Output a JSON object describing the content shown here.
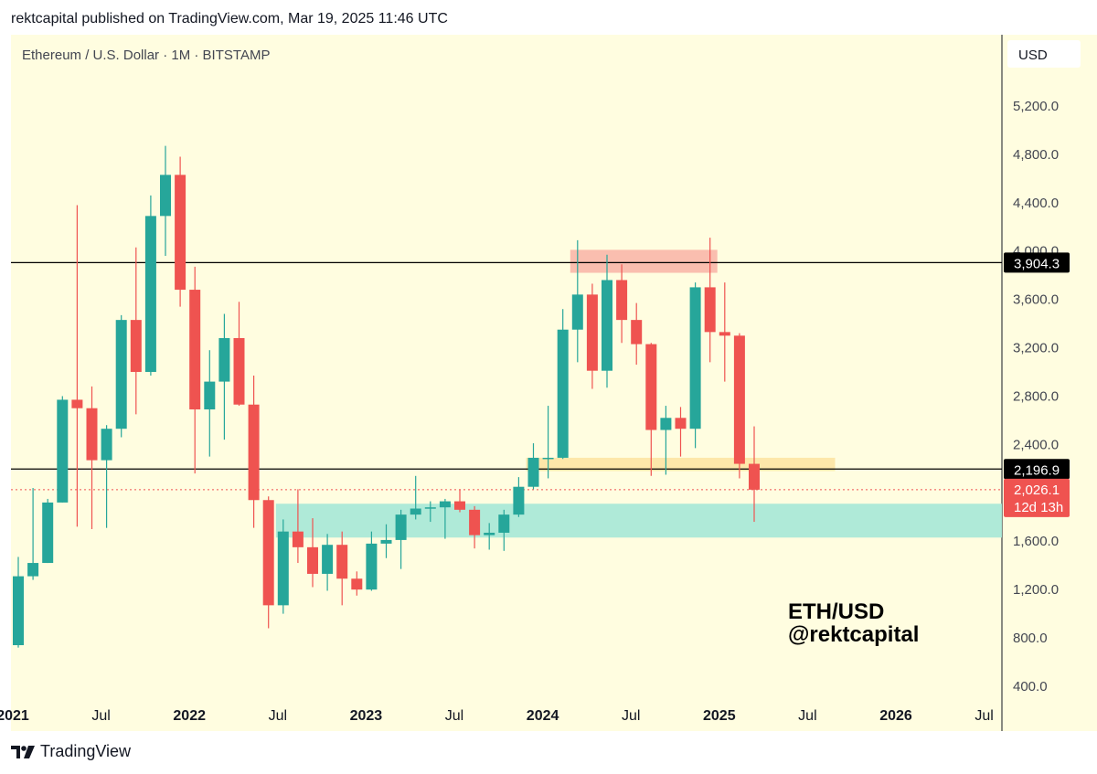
{
  "publisher": "rektcapital published on TradingView.com, Mar 19, 2025 11:46 UTC",
  "brand": "TradingView",
  "watermark": {
    "line1": "ETH/USD",
    "line2": "@rektcapital"
  },
  "colors": {
    "background": "#fffde0",
    "up": "#26a69a",
    "down": "#ef5350",
    "resistance_zone": "#f9b7aa",
    "support_zone_orange": "#fde3a0",
    "support_zone_teal": "#a6e8d7"
  },
  "chart_data": {
    "type": "candlestick",
    "title": "Ethereum / U.S. Dollar · 1M · BITSTAMP",
    "currency": "USD",
    "ylim": [
      300,
      5600
    ],
    "y_ticks": [
      400,
      800,
      1200,
      1600,
      2000,
      2400,
      2800,
      3200,
      3600,
      4000,
      4400,
      4800,
      5200
    ],
    "y_tick_labels": [
      "400.0",
      "800.0",
      "1,200.0",
      "1,600.0",
      "2,000.0",
      "2,400.0",
      "2,800.0",
      "3,200.0",
      "3,600.0",
      "4,000.0",
      "4,400.0",
      "4,800.0",
      "5,200.0"
    ],
    "x_labels": [
      {
        "date": "2021-01",
        "label": "2021",
        "bold": true
      },
      {
        "date": "2021-07",
        "label": "Jul",
        "bold": false
      },
      {
        "date": "2022-01",
        "label": "2022",
        "bold": true
      },
      {
        "date": "2022-07",
        "label": "Jul",
        "bold": false
      },
      {
        "date": "2023-01",
        "label": "2023",
        "bold": true
      },
      {
        "date": "2023-07",
        "label": "Jul",
        "bold": false
      },
      {
        "date": "2024-01",
        "label": "2024",
        "bold": true
      },
      {
        "date": "2024-07",
        "label": "Jul",
        "bold": false
      },
      {
        "date": "2025-01",
        "label": "2025",
        "bold": true
      },
      {
        "date": "2025-07",
        "label": "Jul",
        "bold": false
      },
      {
        "date": "2026-01",
        "label": "2026",
        "bold": true
      },
      {
        "date": "2026-07",
        "label": "Jul",
        "bold": false
      }
    ],
    "candles": [
      {
        "date": "2021-01",
        "o": 740,
        "h": 1470,
        "l": 720,
        "c": 1310
      },
      {
        "date": "2021-02",
        "o": 1310,
        "h": 2040,
        "l": 1280,
        "c": 1420
      },
      {
        "date": "2021-03",
        "o": 1420,
        "h": 1950,
        "l": 1420,
        "c": 1920
      },
      {
        "date": "2021-04",
        "o": 1920,
        "h": 2800,
        "l": 1920,
        "c": 2770
      },
      {
        "date": "2021-05",
        "o": 2770,
        "h": 4380,
        "l": 1720,
        "c": 2700
      },
      {
        "date": "2021-06",
        "o": 2700,
        "h": 2880,
        "l": 1700,
        "c": 2270
      },
      {
        "date": "2021-07",
        "o": 2270,
        "h": 2560,
        "l": 1710,
        "c": 2530
      },
      {
        "date": "2021-08",
        "o": 2530,
        "h": 3470,
        "l": 2460,
        "c": 3430
      },
      {
        "date": "2021-09",
        "o": 3430,
        "h": 4030,
        "l": 2650,
        "c": 3000
      },
      {
        "date": "2021-10",
        "o": 3000,
        "h": 4460,
        "l": 2970,
        "c": 4290
      },
      {
        "date": "2021-11",
        "o": 4290,
        "h": 4870,
        "l": 3960,
        "c": 4630
      },
      {
        "date": "2021-12",
        "o": 4630,
        "h": 4780,
        "l": 3540,
        "c": 3680
      },
      {
        "date": "2022-01",
        "o": 3680,
        "h": 3870,
        "l": 2160,
        "c": 2690
      },
      {
        "date": "2022-02",
        "o": 2690,
        "h": 3180,
        "l": 2300,
        "c": 2920
      },
      {
        "date": "2022-03",
        "o": 2920,
        "h": 3480,
        "l": 2440,
        "c": 3280
      },
      {
        "date": "2022-04",
        "o": 3280,
        "h": 3580,
        "l": 2720,
        "c": 2730
      },
      {
        "date": "2022-05",
        "o": 2730,
        "h": 2970,
        "l": 1710,
        "c": 1940
      },
      {
        "date": "2022-06",
        "o": 1940,
        "h": 1970,
        "l": 880,
        "c": 1070
      },
      {
        "date": "2022-07",
        "o": 1070,
        "h": 1780,
        "l": 1000,
        "c": 1680
      },
      {
        "date": "2022-08",
        "o": 1680,
        "h": 2030,
        "l": 1420,
        "c": 1550
      },
      {
        "date": "2022-09",
        "o": 1550,
        "h": 1790,
        "l": 1220,
        "c": 1330
      },
      {
        "date": "2022-10",
        "o": 1330,
        "h": 1660,
        "l": 1190,
        "c": 1570
      },
      {
        "date": "2022-11",
        "o": 1570,
        "h": 1680,
        "l": 1070,
        "c": 1290
      },
      {
        "date": "2022-12",
        "o": 1290,
        "h": 1350,
        "l": 1150,
        "c": 1200
      },
      {
        "date": "2023-01",
        "o": 1200,
        "h": 1680,
        "l": 1190,
        "c": 1580
      },
      {
        "date": "2023-02",
        "o": 1580,
        "h": 1740,
        "l": 1460,
        "c": 1610
      },
      {
        "date": "2023-03",
        "o": 1610,
        "h": 1860,
        "l": 1370,
        "c": 1820
      },
      {
        "date": "2023-04",
        "o": 1820,
        "h": 2140,
        "l": 1780,
        "c": 1870
      },
      {
        "date": "2023-05",
        "o": 1870,
        "h": 1930,
        "l": 1760,
        "c": 1880
      },
      {
        "date": "2023-06",
        "o": 1880,
        "h": 1950,
        "l": 1620,
        "c": 1930
      },
      {
        "date": "2023-07",
        "o": 1930,
        "h": 2030,
        "l": 1840,
        "c": 1860
      },
      {
        "date": "2023-08",
        "o": 1860,
        "h": 1890,
        "l": 1540,
        "c": 1650
      },
      {
        "date": "2023-09",
        "o": 1650,
        "h": 1750,
        "l": 1530,
        "c": 1670
      },
      {
        "date": "2023-10",
        "o": 1670,
        "h": 1860,
        "l": 1520,
        "c": 1820
      },
      {
        "date": "2023-11",
        "o": 1820,
        "h": 2130,
        "l": 1800,
        "c": 2050
      },
      {
        "date": "2023-12",
        "o": 2050,
        "h": 2410,
        "l": 2030,
        "c": 2290
      },
      {
        "date": "2024-01",
        "o": 2290,
        "h": 2720,
        "l": 2120,
        "c": 2290
      },
      {
        "date": "2024-02",
        "o": 2290,
        "h": 3520,
        "l": 2280,
        "c": 3350
      },
      {
        "date": "2024-03",
        "o": 3350,
        "h": 4090,
        "l": 3080,
        "c": 3640
      },
      {
        "date": "2024-04",
        "o": 3640,
        "h": 3730,
        "l": 2860,
        "c": 3010
      },
      {
        "date": "2024-05",
        "o": 3010,
        "h": 3970,
        "l": 2870,
        "c": 3760
      },
      {
        "date": "2024-06",
        "o": 3760,
        "h": 3890,
        "l": 3240,
        "c": 3430
      },
      {
        "date": "2024-07",
        "o": 3430,
        "h": 3570,
        "l": 3060,
        "c": 3230
      },
      {
        "date": "2024-08",
        "o": 3230,
        "h": 3240,
        "l": 2140,
        "c": 2520
      },
      {
        "date": "2024-09",
        "o": 2520,
        "h": 2720,
        "l": 2150,
        "c": 2620
      },
      {
        "date": "2024-10",
        "o": 2620,
        "h": 2710,
        "l": 2300,
        "c": 2530
      },
      {
        "date": "2024-11",
        "o": 2530,
        "h": 3740,
        "l": 2370,
        "c": 3700
      },
      {
        "date": "2024-12",
        "o": 3700,
        "h": 4110,
        "l": 3080,
        "c": 3330
      },
      {
        "date": "2025-01",
        "o": 3330,
        "h": 3740,
        "l": 2920,
        "c": 3300
      },
      {
        "date": "2025-02",
        "o": 3300,
        "h": 3320,
        "l": 2120,
        "c": 2240
      },
      {
        "date": "2025-03",
        "o": 2240,
        "h": 2550,
        "l": 1760,
        "c": 2026
      }
    ],
    "horizontal_lines": [
      {
        "price": 3904.3,
        "label": "3,904.3"
      },
      {
        "price": 2196.9,
        "label": "2,196.9"
      }
    ],
    "current_price": {
      "price": 2026.1,
      "label": "2,026.1",
      "countdown": "12d 13h"
    },
    "zones": [
      {
        "name": "resistance",
        "from": "2024-03",
        "to": "2024-12",
        "low": 3820,
        "high": 4010,
        "color": "#f9b7aa"
      },
      {
        "name": "support-orange",
        "from": "2023-12",
        "to": "2025-08",
        "low": 2180,
        "high": 2290,
        "color": "#fde3a0"
      },
      {
        "name": "support-teal",
        "from": "2022-07",
        "to": "2026-10",
        "low": 1630,
        "high": 1910,
        "color": "#a6e8d7"
      }
    ],
    "grid": false,
    "legend": "none"
  }
}
